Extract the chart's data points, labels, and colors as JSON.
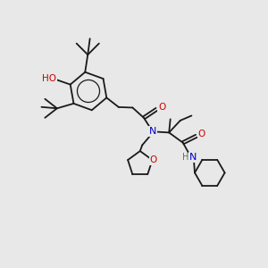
{
  "background_color": "#e8e8e8",
  "bond_color": "#1a1a1a",
  "atom_colors": {
    "O": "#cc0000",
    "N": "#0000cc",
    "H": "#4a7a4a",
    "C": "#1a1a1a"
  }
}
